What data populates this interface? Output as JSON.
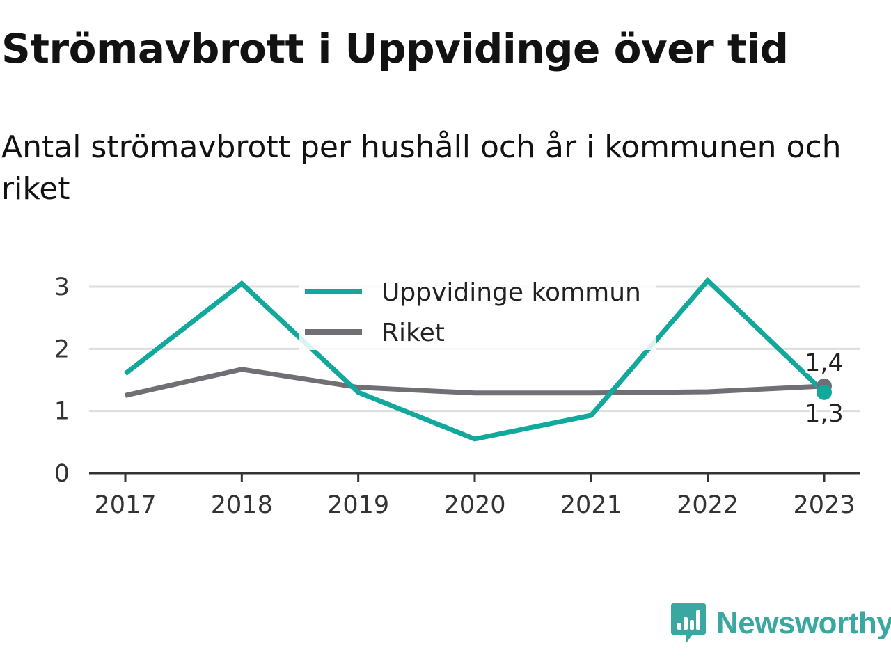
{
  "header": {
    "title": "Strömavbrott i Uppvidinge över tid",
    "subtitle": "Antal strömavbrott per hushåll och år i kommunen och riket"
  },
  "brand": {
    "name": "Newsworthy",
    "icon": "newsworthy-chart-bubble-icon",
    "color": "#3aa8a0"
  },
  "chart_data": {
    "type": "line",
    "x": [
      "2017",
      "2018",
      "2019",
      "2020",
      "2021",
      "2022",
      "2023"
    ],
    "ylim": [
      0,
      3
    ],
    "yticks": [
      "0",
      "1",
      "2",
      "3"
    ],
    "grid": true,
    "legend_position": "top-center",
    "series": [
      {
        "name": "Uppvidinge kommun",
        "color": "#12a89b",
        "values": [
          1.6,
          3.05,
          1.3,
          0.55,
          0.93,
          3.1,
          1.3
        ],
        "end_label": "1,3"
      },
      {
        "name": "Riket",
        "color": "#706f75",
        "values": [
          1.25,
          1.67,
          1.38,
          1.29,
          1.29,
          1.31,
          1.4
        ],
        "end_label": "1,4"
      }
    ]
  }
}
